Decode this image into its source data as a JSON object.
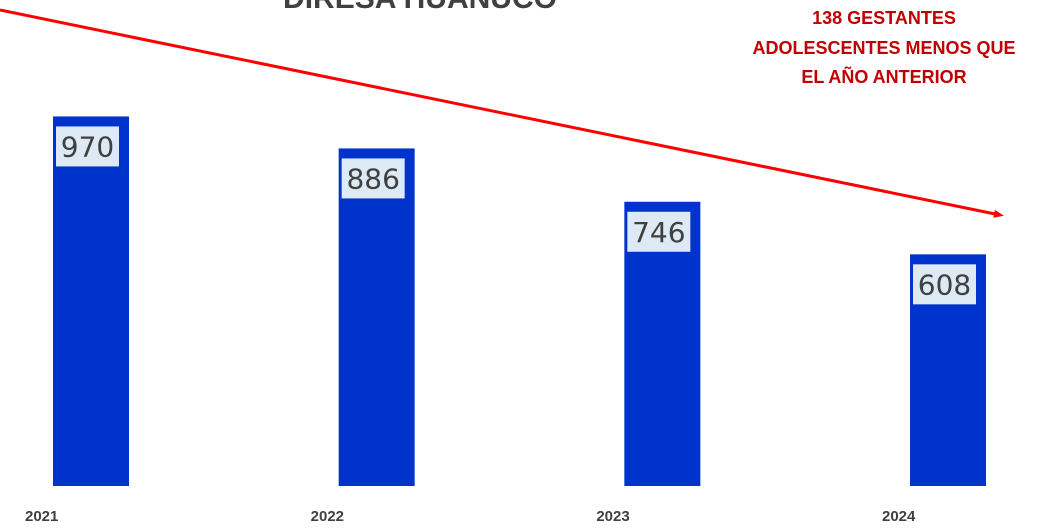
{
  "chart_data": {
    "type": "bar",
    "title": "DIRESA HUÁNUCO",
    "categories": [
      "2021",
      "2022",
      "2023",
      "2024"
    ],
    "values": [
      970,
      886,
      746,
      608
    ],
    "data_labels": [
      "970",
      "886",
      "746",
      "608"
    ],
    "xlabel": "",
    "ylabel": "",
    "ylim": [
      0,
      1000
    ],
    "grid": false,
    "legend": "none",
    "annotation": {
      "lines": [
        "138 GESTANTES",
        "ADOLESCENTES MENOS QUE",
        "EL AÑO ANTERIOR"
      ],
      "position": "top-right"
    },
    "trend_arrow": "decreasing"
  },
  "colors": {
    "bar": "#0033cc",
    "label_box": "#dde9f5",
    "arrow": "#ff0000",
    "annotation": "#c00000",
    "text": "#404040"
  }
}
